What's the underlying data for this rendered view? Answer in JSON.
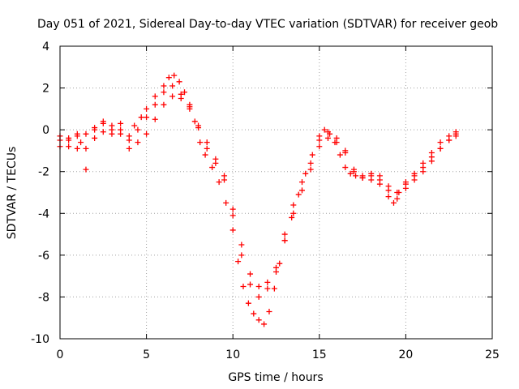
{
  "chart_data": {
    "type": "scatter",
    "title": "Day 051 of 2021, Sidereal Day-to-day VTEC variation (SDTVAR) for receiver geob",
    "xlabel": "GPS time / hours",
    "ylabel": "SDTVAR / TECUs",
    "xlim": [
      0,
      25
    ],
    "ylim": [
      -10,
      4
    ],
    "x_ticks": [
      0,
      5,
      10,
      15,
      20,
      25
    ],
    "y_ticks": [
      -10,
      -8,
      -6,
      -4,
      -2,
      0,
      2,
      4
    ],
    "x_tick_labels": [
      "0",
      "5",
      "10",
      "15",
      "20",
      "25"
    ],
    "y_tick_labels": [
      "-10",
      "-8",
      "-6",
      "-4",
      "-2",
      "0",
      "2",
      "4"
    ],
    "grid": true,
    "marker": "+",
    "series_color": "#ff0000",
    "series": [
      {
        "x": [
          0.0,
          0.5,
          1.0,
          1.2,
          1.5,
          2.0,
          2.5,
          3.0,
          3.5,
          4.0,
          4.3,
          4.7,
          5.0,
          5.5,
          6.0,
          6.3,
          6.6,
          6.9,
          7.2,
          7.5,
          7.8,
          8.1,
          8.4,
          8.8,
          9.2,
          9.6,
          10.0,
          10.3,
          10.6,
          10.9,
          11.2,
          11.5,
          11.8,
          12.1,
          12.4,
          12.7,
          13.0,
          13.4,
          13.8,
          14.2,
          14.6,
          15.0,
          15.3,
          15.6,
          15.9,
          16.2,
          16.5,
          16.8,
          17.1,
          17.5,
          18.0,
          18.5,
          19.0,
          19.3,
          19.6,
          20.0,
          20.5,
          21.0,
          21.5,
          22.0,
          22.5,
          22.9
        ],
        "y": [
          -0.5,
          -0.8,
          -0.3,
          -0.6,
          -0.2,
          0.0,
          0.3,
          0.0,
          -0.2,
          -0.3,
          0.2,
          0.6,
          1.0,
          1.6,
          2.1,
          2.5,
          2.6,
          2.3,
          1.8,
          1.2,
          0.4,
          -0.6,
          -1.2,
          -1.8,
          -2.5,
          -3.5,
          -4.8,
          -6.3,
          -7.5,
          -8.3,
          -8.8,
          -9.1,
          -9.3,
          -8.7,
          -7.6,
          -6.4,
          -5.3,
          -4.2,
          -3.1,
          -2.1,
          -1.2,
          -0.3,
          0.0,
          -0.2,
          -0.6,
          -1.2,
          -1.8,
          -2.1,
          -2.2,
          -2.3,
          -2.4,
          -2.6,
          -3.2,
          -3.5,
          -3.0,
          -2.6,
          -2.1,
          -1.6,
          -1.1,
          -0.6,
          -0.3,
          -0.1
        ]
      },
      {
        "x": [
          0.0,
          0.5,
          1.0,
          1.5,
          2.0,
          2.5,
          3.0,
          3.5,
          4.0,
          4.5,
          5.0,
          5.5,
          6.0,
          6.5,
          7.0,
          7.5,
          8.0,
          8.5,
          9.0,
          9.5,
          10.0,
          10.5,
          11.0,
          11.5,
          12.0,
          12.5,
          13.0,
          13.5,
          14.0,
          14.5,
          15.0,
          15.5,
          16.0,
          16.5,
          17.0,
          17.5,
          18.0,
          18.5,
          19.0,
          19.5,
          20.0,
          20.5,
          21.0,
          21.5,
          22.0,
          22.5,
          22.9
        ],
        "y": [
          -0.3,
          -0.5,
          -0.9,
          -1.9,
          -0.4,
          -0.1,
          0.2,
          0.0,
          -0.5,
          -0.6,
          -0.2,
          0.5,
          1.2,
          1.6,
          1.5,
          1.0,
          0.1,
          -0.9,
          -1.6,
          -2.4,
          -4.1,
          -6.0,
          -7.4,
          -8.0,
          -7.6,
          -6.6,
          -5.3,
          -4.0,
          -2.9,
          -1.9,
          -0.8,
          -0.4,
          -0.6,
          -1.1,
          -1.9,
          -2.2,
          -2.1,
          -2.2,
          -2.7,
          -3.0,
          -2.8,
          -2.4,
          -1.8,
          -1.3,
          -0.9,
          -0.5,
          -0.3
        ]
      },
      {
        "x": [
          0.0,
          0.5,
          1.0,
          1.5,
          2.0,
          2.5,
          3.0,
          3.5,
          4.0,
          4.5,
          5.0,
          5.5,
          6.0,
          6.5,
          7.0,
          7.5,
          8.0,
          8.5,
          9.0,
          9.5,
          10.0,
          10.5,
          11.0,
          11.5,
          12.0,
          12.5,
          13.0,
          13.5,
          14.0,
          14.5,
          15.0,
          15.5,
          16.0,
          16.5,
          17.0,
          17.5,
          18.0,
          18.5,
          19.0,
          19.5,
          20.0,
          20.5,
          21.0,
          21.5,
          22.0,
          22.5,
          22.9
        ],
        "y": [
          -0.8,
          -0.4,
          -0.2,
          -0.9,
          0.1,
          0.4,
          -0.2,
          0.3,
          -0.9,
          0.0,
          0.6,
          1.2,
          1.8,
          2.1,
          1.7,
          1.1,
          0.2,
          -0.6,
          -1.4,
          -2.2,
          -3.8,
          -5.5,
          -6.9,
          -7.5,
          -7.3,
          -6.8,
          -5.0,
          -3.6,
          -2.5,
          -1.6,
          -0.5,
          -0.1,
          -0.4,
          -1.0,
          -2.0,
          -2.3,
          -2.2,
          -2.4,
          -2.9,
          -3.3,
          -2.5,
          -2.2,
          -2.0,
          -1.5,
          -0.9,
          -0.5,
          -0.2
        ]
      }
    ]
  }
}
